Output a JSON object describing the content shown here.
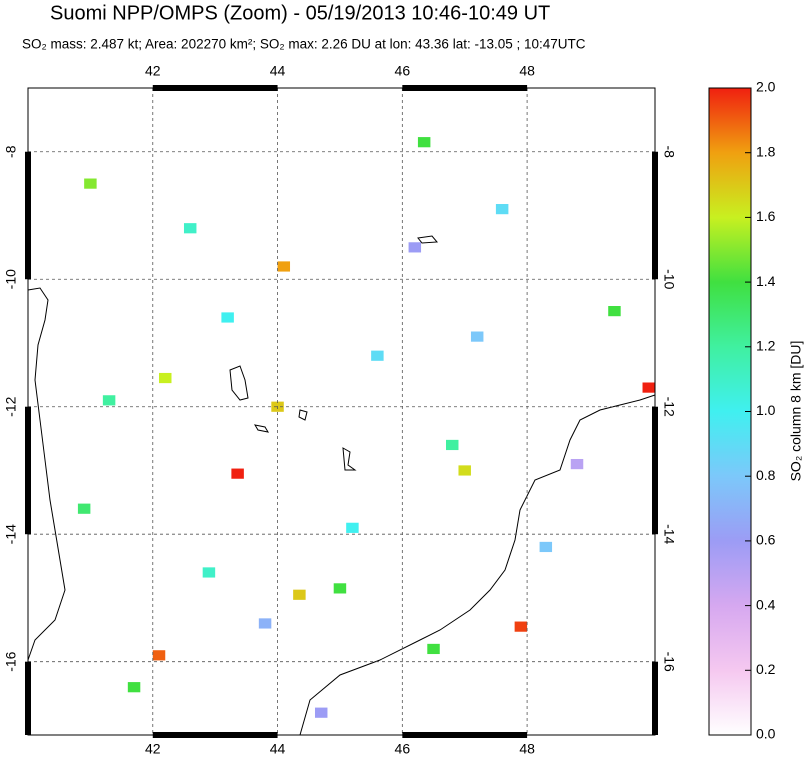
{
  "chart_data": {
    "type": "map",
    "title": "Suomi NPP/OMPS (Zoom) - 05/19/2013 10:46-10:49 UT",
    "subtitle": "SO₂ mass: 2.487 kt; Area: 202270 km²; SO₂ max: 2.26 DU at lon: 43.36 lat: -13.05 ; 10:47UTC",
    "xlim": [
      40.0,
      50.05
    ],
    "ylim": [
      -17.15,
      -7.0
    ],
    "xticks": [
      42,
      44,
      46,
      48
    ],
    "yticks": [
      -8,
      -10,
      -12,
      -14,
      -16
    ],
    "grid": true,
    "x": [
      43.36,
      47.9,
      44.1,
      42.1,
      49.95,
      44.0,
      42.2,
      46.35,
      49.4,
      47.0,
      44.35,
      45.0,
      41.0,
      42.6,
      43.2,
      45.6,
      46.8,
      48.3,
      40.9,
      41.7,
      43.8,
      45.2,
      46.2,
      47.6,
      48.8,
      42.9,
      44.7,
      46.5,
      41.3,
      47.2
    ],
    "y": [
      -13.05,
      -15.45,
      -9.8,
      -15.9,
      -11.7,
      -12.0,
      -11.55,
      -7.85,
      -10.5,
      -13.0,
      -14.95,
      -14.85,
      -8.5,
      -9.2,
      -10.6,
      -11.2,
      -12.6,
      -14.2,
      -13.6,
      -16.4,
      -15.4,
      -13.9,
      -9.5,
      -8.9,
      -12.9,
      -14.6,
      -16.8,
      -15.8,
      -11.9,
      -10.9
    ],
    "values": [
      2.26,
      1.95,
      1.8,
      1.9,
      2.0,
      1.7,
      1.6,
      1.4,
      1.4,
      1.65,
      1.7,
      1.4,
      1.5,
      1.1,
      1.0,
      0.9,
      1.2,
      0.8,
      1.3,
      1.4,
      0.7,
      1.0,
      0.6,
      0.9,
      0.5,
      1.1,
      0.6,
      1.4,
      1.2,
      0.8
    ],
    "colorbar_label": "SO₂ column 8 km [DU]",
    "clim": [
      0.0,
      2.0
    ],
    "cticks": [
      {
        "value": 0,
        "label": "0.0"
      },
      {
        "value": 0.2,
        "label": "0.2"
      },
      {
        "value": 0.4,
        "label": "0.4"
      },
      {
        "value": 0.6,
        "label": "0.6"
      },
      {
        "value": 0.8,
        "label": "0.8"
      },
      {
        "value": 1,
        "label": "1.0"
      },
      {
        "value": 1.2,
        "label": "1.2"
      },
      {
        "value": 1.4,
        "label": "1.4"
      },
      {
        "value": 1.6,
        "label": "1.6"
      },
      {
        "value": 1.8,
        "label": "1.8"
      },
      {
        "value": 2,
        "label": "2.0"
      }
    ],
    "colormap": [
      "#ffffff",
      "#f5c8f0",
      "#d6a8f0",
      "#9c9cf5",
      "#7cc8fa",
      "#40f0f0",
      "#40f0a0",
      "#40e040",
      "#c8f020",
      "#f0a010",
      "#f02010"
    ]
  }
}
